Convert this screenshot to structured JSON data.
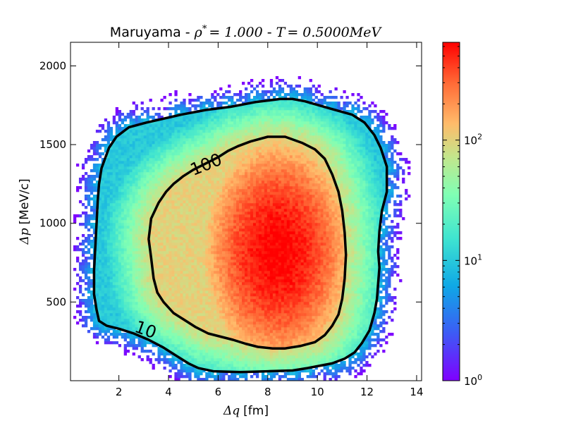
{
  "chart_data": {
    "type": "heatmap",
    "title": {
      "prefix": "Maruyama - ",
      "rho_symbol": "ρ",
      "rho_sup": "*",
      "rho_value": "= 1.000",
      "separator": " - ",
      "T_symbol": "T",
      "T_value": "= 0.5000",
      "T_unit": "MeV"
    },
    "xlabel": {
      "symbol": "Δq",
      "unit": "[fm]"
    },
    "ylabel": {
      "symbol": "Δp",
      "unit": "[MeV/c]"
    },
    "xlim": [
      0.05,
      14.2
    ],
    "ylim": [
      0,
      2150
    ],
    "xticks": [
      2,
      4,
      6,
      8,
      10,
      12,
      14
    ],
    "yticks": [
      500,
      1000,
      1500,
      2000
    ],
    "colorbar": {
      "scale": "log",
      "vmin": 1,
      "vmax": 650,
      "colormap": "rainbow",
      "ticks": [
        {
          "value": 1,
          "base": "10",
          "exp": "0"
        },
        {
          "value": 10,
          "base": "10",
          "exp": "1"
        },
        {
          "value": 100,
          "base": "10",
          "exp": "2"
        }
      ]
    },
    "density_peak": {
      "x": 8.4,
      "y": 820,
      "max_count": 650
    },
    "contours": [
      {
        "level": 10,
        "label": "10",
        "label_at": {
          "x": 3.0,
          "y": 290
        },
        "points": [
          [
            1.2,
            380
          ],
          [
            1.1,
            450
          ],
          [
            1.0,
            550
          ],
          [
            1.0,
            700
          ],
          [
            1.05,
            850
          ],
          [
            1.1,
            1000
          ],
          [
            1.15,
            1150
          ],
          [
            1.2,
            1250
          ],
          [
            1.3,
            1350
          ],
          [
            1.6,
            1480
          ],
          [
            1.9,
            1550
          ],
          [
            2.4,
            1610
          ],
          [
            3.1,
            1640
          ],
          [
            4.5,
            1690
          ],
          [
            5.5,
            1720
          ],
          [
            6.5,
            1740
          ],
          [
            7.5,
            1770
          ],
          [
            8.5,
            1790
          ],
          [
            9.0,
            1790
          ],
          [
            9.5,
            1775
          ],
          [
            10.5,
            1730
          ],
          [
            11.4,
            1690
          ],
          [
            11.9,
            1640
          ],
          [
            12.3,
            1560
          ],
          [
            12.55,
            1480
          ],
          [
            12.8,
            1360
          ],
          [
            12.8,
            1200
          ],
          [
            12.6,
            1080
          ],
          [
            12.5,
            950
          ],
          [
            12.45,
            820
          ],
          [
            12.5,
            720
          ],
          [
            12.45,
            620
          ],
          [
            12.4,
            520
          ],
          [
            12.3,
            430
          ],
          [
            12.1,
            320
          ],
          [
            11.8,
            240
          ],
          [
            11.5,
            180
          ],
          [
            11.1,
            140
          ],
          [
            10.6,
            110
          ],
          [
            9.6,
            80
          ],
          [
            9.0,
            65
          ],
          [
            8.0,
            60
          ],
          [
            6.9,
            55
          ],
          [
            5.8,
            60
          ],
          [
            5.2,
            80
          ],
          [
            4.8,
            110
          ],
          [
            4.3,
            160
          ],
          [
            3.8,
            210
          ],
          [
            3.2,
            260
          ],
          [
            2.6,
            300
          ],
          [
            2.0,
            330
          ],
          [
            1.5,
            350
          ],
          [
            1.2,
            380
          ]
        ]
      },
      {
        "level": 100,
        "label": "100",
        "label_at": {
          "x": 5.6,
          "y": 1340
        },
        "points": [
          [
            3.3,
            1030
          ],
          [
            3.2,
            900
          ],
          [
            3.3,
            780
          ],
          [
            3.4,
            650
          ],
          [
            3.55,
            560
          ],
          [
            3.8,
            500
          ],
          [
            4.2,
            430
          ],
          [
            4.6,
            390
          ],
          [
            5.1,
            340
          ],
          [
            5.6,
            300
          ],
          [
            6.1,
            280
          ],
          [
            6.6,
            260
          ],
          [
            7.1,
            235
          ],
          [
            7.6,
            215
          ],
          [
            8.2,
            205
          ],
          [
            8.7,
            205
          ],
          [
            9.3,
            220
          ],
          [
            9.9,
            245
          ],
          [
            10.3,
            290
          ],
          [
            10.6,
            350
          ],
          [
            10.85,
            420
          ],
          [
            11.0,
            520
          ],
          [
            11.1,
            650
          ],
          [
            11.15,
            800
          ],
          [
            11.1,
            940
          ],
          [
            11.0,
            1080
          ],
          [
            10.85,
            1200
          ],
          [
            10.6,
            1310
          ],
          [
            10.3,
            1410
          ],
          [
            9.9,
            1470
          ],
          [
            9.4,
            1510
          ],
          [
            8.7,
            1550
          ],
          [
            8.0,
            1550
          ],
          [
            7.3,
            1520
          ],
          [
            6.8,
            1490
          ],
          [
            6.4,
            1460
          ],
          [
            6.0,
            1420
          ],
          [
            5.5,
            1380
          ],
          [
            5.0,
            1340
          ],
          [
            4.6,
            1300
          ],
          [
            4.2,
            1250
          ],
          [
            3.9,
            1200
          ],
          [
            3.6,
            1130
          ],
          [
            3.3,
            1030
          ]
        ]
      }
    ]
  }
}
